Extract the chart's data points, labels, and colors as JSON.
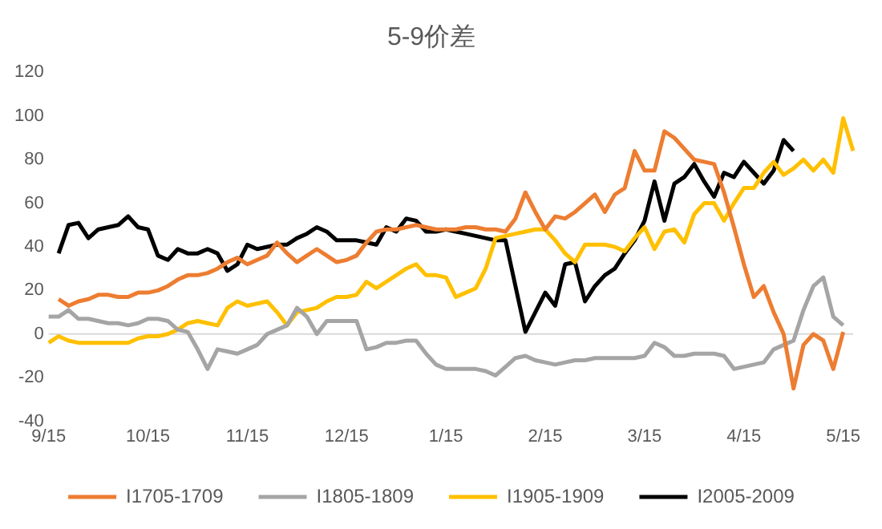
{
  "chart_data": {
    "type": "line",
    "title": "5-9价差",
    "categories": [
      "9/15",
      null,
      null,
      null,
      null,
      null,
      null,
      null,
      null,
      null,
      "10/15",
      null,
      null,
      null,
      null,
      null,
      null,
      null,
      null,
      null,
      "11/15",
      null,
      null,
      null,
      null,
      null,
      null,
      null,
      null,
      null,
      "12/15",
      null,
      null,
      null,
      null,
      null,
      null,
      null,
      null,
      null,
      "1/15",
      null,
      null,
      null,
      null,
      null,
      null,
      null,
      null,
      null,
      "2/15",
      null,
      null,
      null,
      null,
      null,
      null,
      null,
      null,
      null,
      "3/15",
      null,
      null,
      null,
      null,
      null,
      null,
      null,
      null,
      null,
      "4/15",
      null,
      null,
      null,
      null,
      null,
      null,
      null,
      null,
      null,
      "5/15",
      null
    ],
    "ylim": [
      -40,
      120
    ],
    "yticks": [
      -40,
      -20,
      0,
      20,
      40,
      60,
      80,
      100,
      120
    ],
    "grid": false,
    "legend": "bottom",
    "ref_lines": [
      {
        "axis": "y",
        "value": 0,
        "color": "#d9d9d9"
      }
    ],
    "series": [
      {
        "name": "I1705-1709",
        "color": "#ed7d31",
        "values": [
          null,
          16,
          13,
          15,
          16,
          18,
          18,
          17,
          17,
          19,
          19,
          20,
          22,
          25,
          27,
          27,
          28,
          30,
          33,
          35,
          32,
          34,
          36,
          42,
          37,
          33,
          36,
          39,
          36,
          33,
          34,
          36,
          42,
          47,
          48,
          48,
          49,
          50,
          49,
          48,
          48,
          48,
          49,
          49,
          48,
          48,
          47,
          53,
          65,
          56,
          48,
          54,
          53,
          56,
          60,
          64,
          56,
          64,
          67,
          84,
          75,
          75,
          93,
          90,
          85,
          80,
          79,
          78,
          65,
          49,
          32,
          17,
          22,
          10,
          0,
          -25,
          -5,
          0,
          -3,
          -16,
          1,
          null
        ]
      },
      {
        "name": "I1805-1809",
        "color": "#a5a5a5",
        "values": [
          8,
          8,
          11,
          7,
          7,
          6,
          5,
          5,
          4,
          5,
          7,
          7,
          6,
          2,
          1,
          -7,
          -16,
          -7,
          -8,
          -9,
          -7,
          -5,
          0,
          2,
          4,
          12,
          8,
          0,
          6,
          6,
          6,
          6,
          -7,
          -6,
          -4,
          -4,
          -3,
          -3,
          -9,
          -14,
          -16,
          -16,
          -16,
          -16,
          -17,
          -19,
          -15,
          -11,
          -10,
          -12,
          -13,
          -14,
          -13,
          -12,
          -12,
          -11,
          -11,
          -11,
          -11,
          -11,
          -10,
          -4,
          -6,
          -10,
          -10,
          -9,
          -9,
          -9,
          -10,
          -16,
          -15,
          -14,
          -13,
          -7,
          -5,
          -3,
          11,
          22,
          26,
          8,
          4,
          null
        ]
      },
      {
        "name": "I1905-1909",
        "color": "#ffc000",
        "values": [
          -4,
          -1,
          -3,
          -4,
          -4,
          -4,
          -4,
          -4,
          -4,
          -2,
          -1,
          -1,
          0,
          2,
          5,
          6,
          5,
          4,
          12,
          15,
          13,
          14,
          15,
          10,
          4,
          10,
          11,
          12,
          15,
          17,
          17,
          18,
          24,
          21,
          24,
          27,
          30,
          32,
          27,
          27,
          26,
          17,
          19,
          21,
          30,
          44,
          45,
          46,
          47,
          48,
          48,
          43,
          37,
          33,
          41,
          41,
          41,
          40,
          38,
          44,
          49,
          39,
          47,
          48,
          42,
          55,
          60,
          60,
          52,
          60,
          67,
          67,
          74,
          79,
          73,
          76,
          80,
          75,
          80,
          74,
          99,
          84
        ]
      },
      {
        "name": "I2005-2009",
        "color": "#000000",
        "values": [
          null,
          37,
          50,
          51,
          44,
          48,
          49,
          50,
          54,
          49,
          48,
          36,
          34,
          39,
          37,
          37,
          39,
          37,
          29,
          32,
          41,
          39,
          40,
          41,
          41,
          44,
          46,
          49,
          47,
          43,
          43,
          43,
          42,
          41,
          49,
          47,
          53,
          52,
          47,
          47,
          48,
          47,
          46,
          45,
          44,
          43,
          43,
          22,
          1,
          10,
          19,
          13,
          32,
          33,
          15,
          22,
          27,
          30,
          37,
          43,
          52,
          70,
          52,
          69,
          72,
          78,
          70,
          63,
          74,
          72,
          79,
          74,
          69,
          75,
          89,
          84,
          null,
          null,
          null,
          null,
          null,
          null
        ]
      }
    ]
  }
}
